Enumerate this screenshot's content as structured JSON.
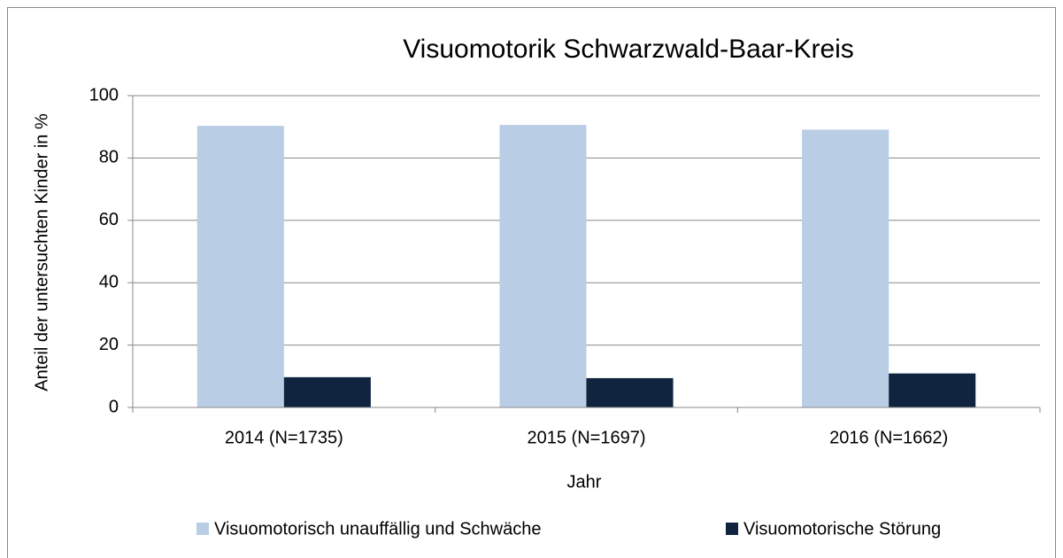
{
  "chart_data": {
    "type": "bar",
    "title": "Visuomotorik Schwarzwald-Baar-Kreis",
    "xlabel": "Jahr",
    "ylabel": "Anteil der untersuchten Kinder in %",
    "categories": [
      "2014 (N=1735)",
      "2015 (N=1697)",
      "2016 (N=1662)"
    ],
    "series": [
      {
        "name": "Visuomotorisch unauffällig und Schwäche",
        "color": "#b9cde5",
        "values": [
          90.3,
          90.6,
          89.1
        ]
      },
      {
        "name": "Visuomotorische Störung",
        "color": "#10243f",
        "values": [
          9.7,
          9.4,
          10.9
        ]
      }
    ],
    "ylim": [
      0,
      100
    ],
    "yticks": [
      0,
      20,
      40,
      60,
      80,
      100
    ],
    "grid": true,
    "legend": "bottom"
  }
}
